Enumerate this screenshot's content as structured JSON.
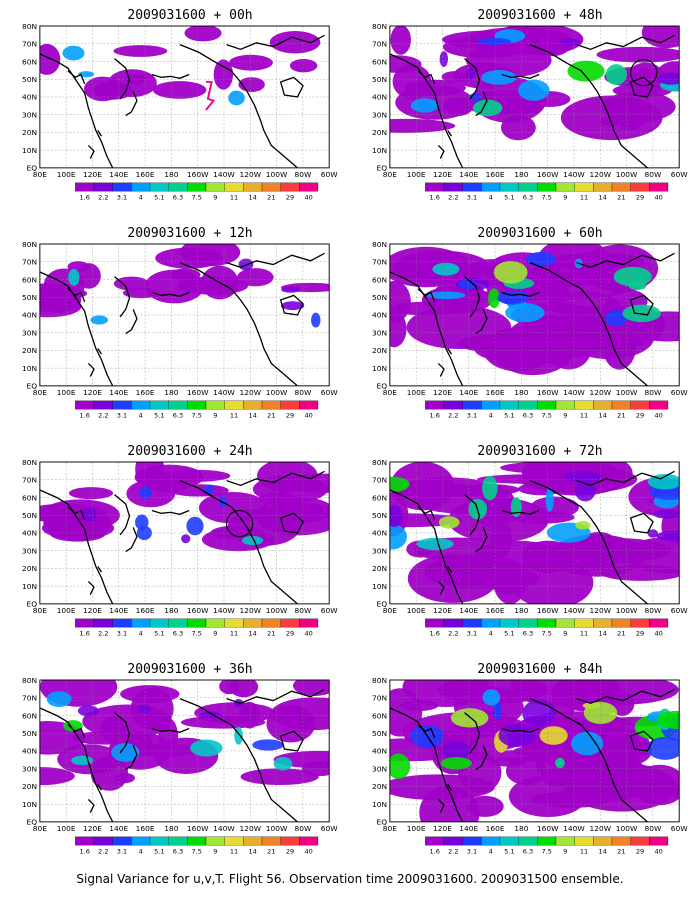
{
  "footer": "Signal Variance for u,v,T. Flight 56. Observation time 2009031600. 2009031500 ensemble.",
  "lat_labels": [
    "80N",
    "70N",
    "60N",
    "50N",
    "40N",
    "30N",
    "20N",
    "10N",
    "EQ"
  ],
  "lon_labels": [
    "80E",
    "100E",
    "120E",
    "140E",
    "160E",
    "180",
    "160W",
    "140W",
    "120W",
    "100W",
    "80W",
    "60W"
  ],
  "colorbar": {
    "labels": [
      "1.6",
      "2.2",
      "3.1",
      "4",
      "5.1",
      "6.3",
      "7.5",
      "9",
      "11",
      "14",
      "21",
      "29",
      "40"
    ],
    "colors": [
      "#a000c8",
      "#7800dc",
      "#1e3cff",
      "#00a0ff",
      "#00c8c8",
      "#00d28c",
      "#00dc00",
      "#a0e632",
      "#e6dc32",
      "#e6af2d",
      "#f08228",
      "#fa3c3c",
      "#f00082"
    ]
  },
  "chart_data": [
    {
      "type": "heatmap",
      "title": "2009031600 + 00h",
      "lead_hours": 0,
      "intensity": 0.15,
      "marker": "trajectory"
    },
    {
      "type": "heatmap",
      "title": "2009031600 + 12h",
      "lead_hours": 12,
      "intensity": 0.25,
      "marker": "none"
    },
    {
      "type": "heatmap",
      "title": "2009031600 + 24h",
      "lead_hours": 24,
      "intensity": 0.4,
      "marker": "circle"
    },
    {
      "type": "heatmap",
      "title": "2009031600 + 36h",
      "lead_hours": 36,
      "intensity": 0.55,
      "marker": "none"
    },
    {
      "type": "heatmap",
      "title": "2009031600 + 48h",
      "lead_hours": 48,
      "intensity": 0.65,
      "marker": "circle"
    },
    {
      "type": "heatmap",
      "title": "2009031600 + 60h",
      "lead_hours": 60,
      "intensity": 0.75,
      "marker": "none"
    },
    {
      "type": "heatmap",
      "title": "2009031600 + 72h",
      "lead_hours": 72,
      "intensity": 0.85,
      "marker": "none"
    },
    {
      "type": "heatmap",
      "title": "2009031600 + 84h",
      "lead_hours": 84,
      "intensity": 1.0,
      "marker": "none"
    }
  ]
}
